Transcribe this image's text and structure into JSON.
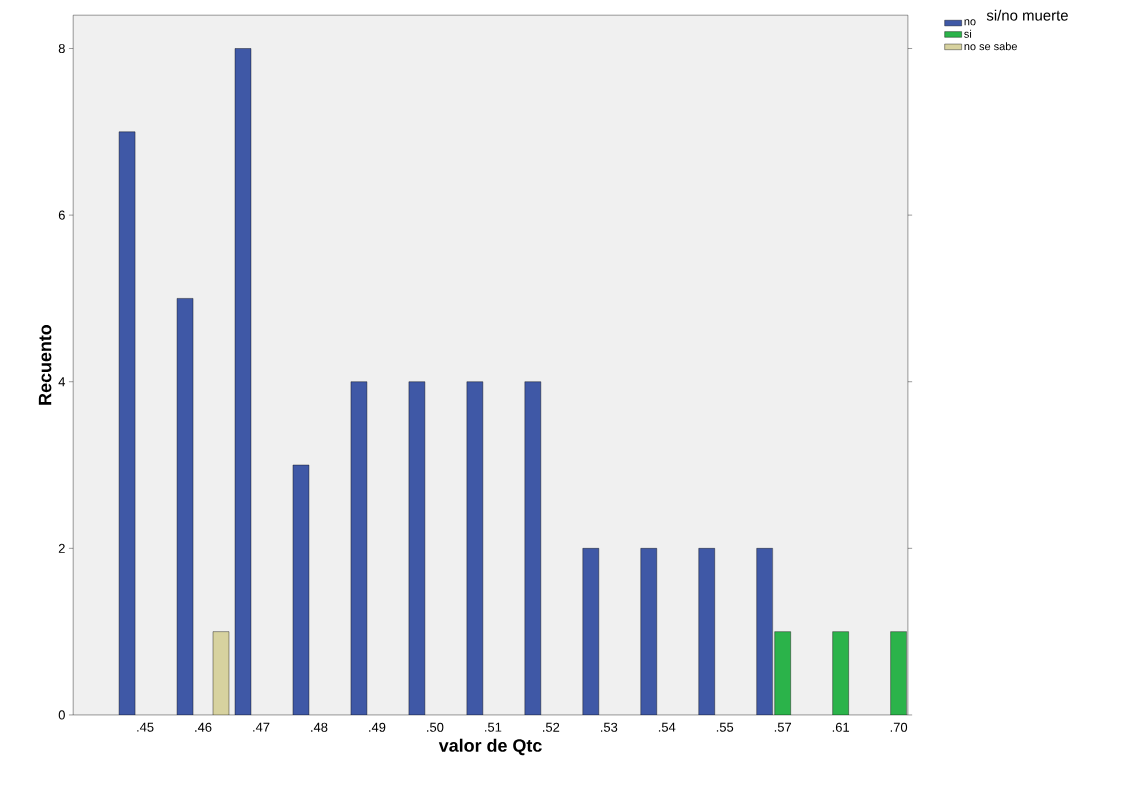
{
  "chart_data": {
    "type": "bar",
    "xlabel": "valor de Qtc",
    "ylabel": "Recuento",
    "legend_title": "si/no muerte",
    "legend": "top right",
    "categories": [
      ".45",
      ".46",
      ".47",
      ".48",
      ".49",
      ".50",
      ".51",
      ".52",
      ".53",
      ".54",
      ".55",
      ".57",
      ".61",
      ".70"
    ],
    "series": [
      {
        "name": "no",
        "color": "#3f58a6",
        "values": [
          7,
          5,
          8,
          3,
          4,
          4,
          4,
          4,
          2,
          2,
          2,
          2,
          null,
          null
        ]
      },
      {
        "name": "si",
        "color": "#2bb34a",
        "values": [
          null,
          null,
          null,
          null,
          null,
          null,
          null,
          null,
          null,
          null,
          null,
          1,
          1,
          1
        ]
      },
      {
        "name": "no se sabe",
        "color": "#d7d29f",
        "values": [
          null,
          1,
          null,
          null,
          null,
          null,
          null,
          null,
          null,
          null,
          null,
          null,
          null,
          null
        ]
      }
    ],
    "ylim": [
      0,
      8.4
    ],
    "yticks": [
      0,
      2,
      4,
      6,
      8
    ],
    "grid": false
  }
}
